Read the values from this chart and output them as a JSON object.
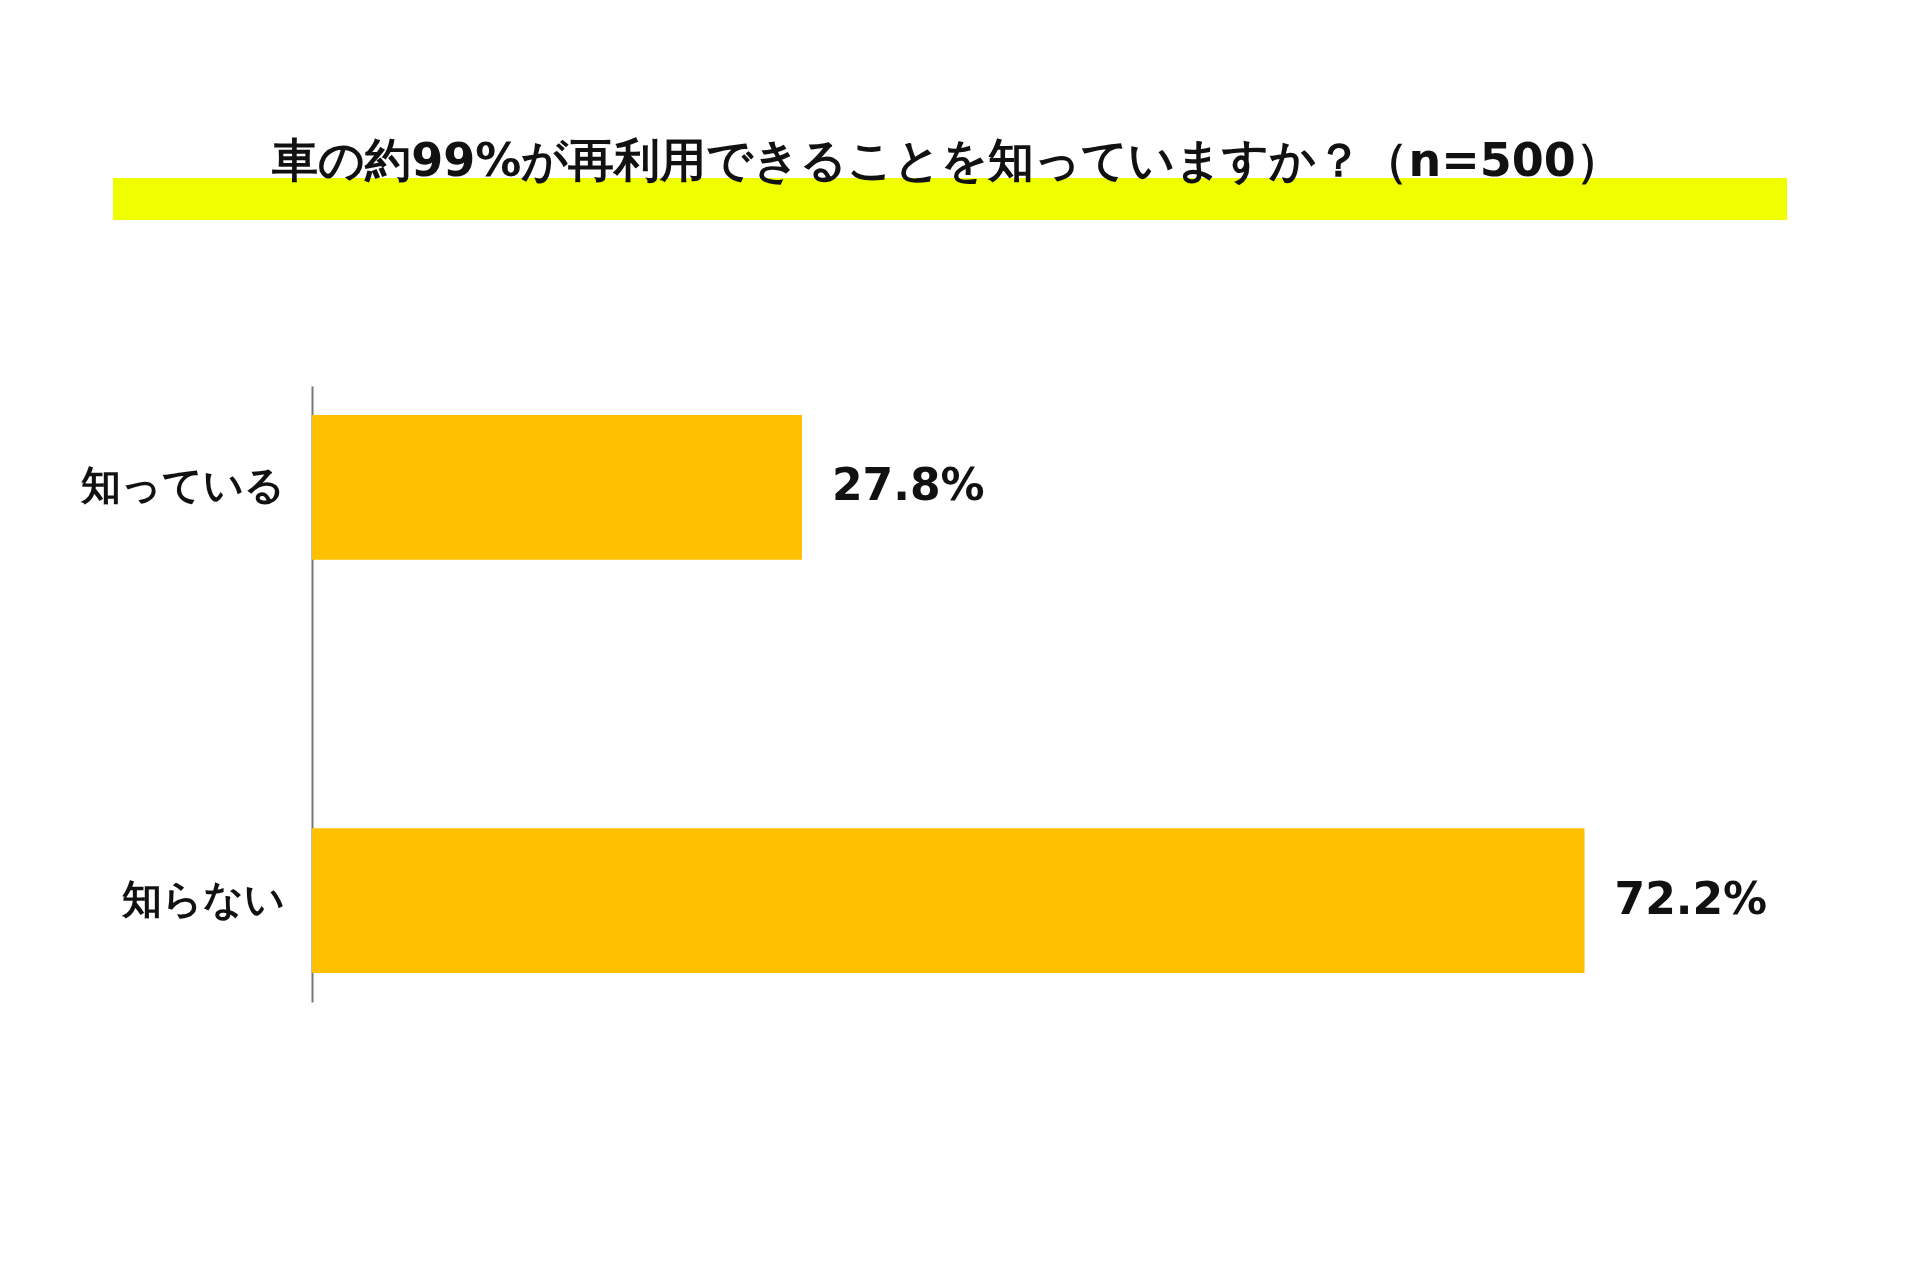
{
  "chart_data": {
    "type": "bar",
    "orientation": "horizontal",
    "title": "車の約99%が再利用できることを知っていますか？（n=500）",
    "categories": [
      "知っている",
      "知らない"
    ],
    "values": [
      27.8,
      72.2
    ],
    "value_labels": [
      "27.8%",
      "72.2%"
    ],
    "color": "#ffc000"
  }
}
